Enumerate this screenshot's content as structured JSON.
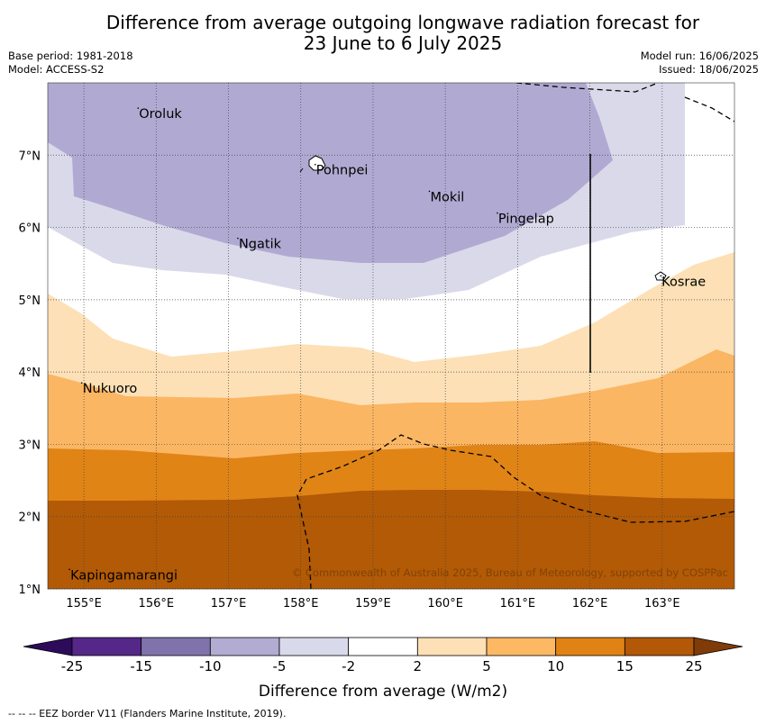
{
  "title": {
    "line1": "Difference from average outgoing longwave radiation forecast for",
    "line2": "23 June to 6 July 2025"
  },
  "meta_left": {
    "base_period": "Base period: 1981-2018",
    "model": "Model: ACCESS-S2"
  },
  "meta_right": {
    "model_run": "Model run: 16/06/2025",
    "issued": "Issued: 18/06/2025"
  },
  "map": {
    "lon_range": [
      154.5,
      164.0
    ],
    "lat_range": [
      1.0,
      8.0
    ],
    "lon_ticks": [
      {
        "value": 155,
        "label": "155°E"
      },
      {
        "value": 156,
        "label": "156°E"
      },
      {
        "value": 157,
        "label": "157°E"
      },
      {
        "value": 158,
        "label": "158°E"
      },
      {
        "value": 159,
        "label": "159°E"
      },
      {
        "value": 160,
        "label": "160°E"
      },
      {
        "value": 161,
        "label": "161°E"
      },
      {
        "value": 162,
        "label": "162°E"
      },
      {
        "value": 163,
        "label": "163°E"
      }
    ],
    "lat_ticks": [
      {
        "value": 1,
        "label": "1°N"
      },
      {
        "value": 2,
        "label": "2°N"
      },
      {
        "value": 3,
        "label": "3°N"
      },
      {
        "value": 4,
        "label": "4°N"
      },
      {
        "value": 5,
        "label": "5°N"
      },
      {
        "value": 6,
        "label": "6°N"
      },
      {
        "value": 7,
        "label": "7°N"
      }
    ],
    "grid": true,
    "places": [
      {
        "name": "Oroluk",
        "lon": 155.75,
        "lat": 7.65
      },
      {
        "name": "Pohnpei",
        "lon": 158.2,
        "lat": 6.87
      },
      {
        "name": "Mokil",
        "lon": 159.78,
        "lat": 6.5
      },
      {
        "name": "Pingelap",
        "lon": 160.72,
        "lat": 6.2
      },
      {
        "name": "Ngatik",
        "lon": 157.13,
        "lat": 5.85
      },
      {
        "name": "Kosrae",
        "lon": 162.98,
        "lat": 5.33
      },
      {
        "name": "Nukuoro",
        "lon": 154.97,
        "lat": 3.85
      },
      {
        "name": "Kapingamarangi",
        "lon": 154.8,
        "lat": 1.27
      }
    ],
    "copyright": "© Commonwealth of Australia 2025, Bureau of Meteorology, supported by COSPPac",
    "colors": {
      "-15 to -10": "#b0aad2",
      "-10 to -5": "#b0aad2",
      "-5 to -2": "#dad9ea",
      "-2 to 2": "#ffffff",
      "2 to 5": "#fde0b6",
      "5 to 10": "#fbb664",
      "10 to 15": "#e08416",
      "15 to 25": "#b25a06"
    }
  },
  "colorbar": {
    "label": "Difference from average (W/m2)",
    "tick_labels": [
      "-25",
      "-15",
      "-10",
      "-5",
      "-2",
      "2",
      "5",
      "10",
      "15",
      "25"
    ],
    "colors": [
      "#2d0b5a",
      "#542788",
      "#8073ac",
      "#b2abd2",
      "#d8daeb",
      "#ffffff",
      "#fee0b6",
      "#fdb863",
      "#e08214",
      "#b35806",
      "#7f3b08"
    ]
  },
  "footer": "--  --  -- EEZ border V11 (Flanders Marine Institute, 2019)."
}
